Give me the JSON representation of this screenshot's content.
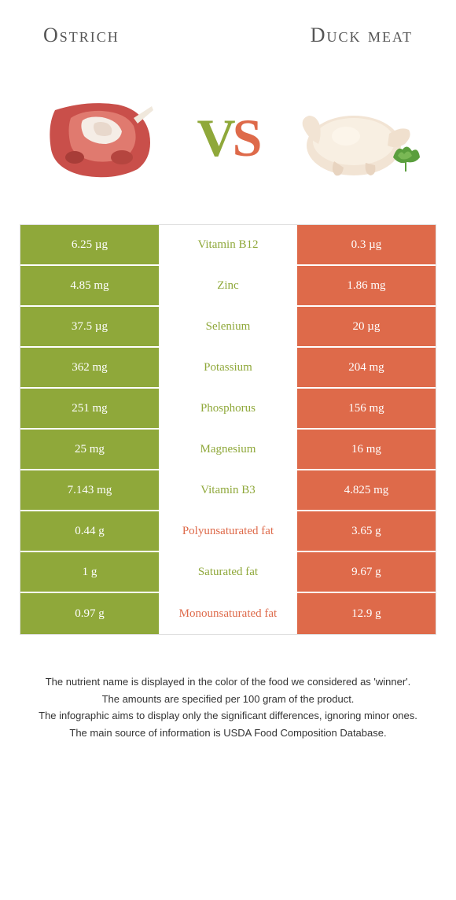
{
  "food1": {
    "name": "Ostrich"
  },
  "food2": {
    "name": "Duck meat"
  },
  "vs": {
    "v": "V",
    "s": "S"
  },
  "colors": {
    "green": "#8fa83a",
    "orange": "#de6a4a"
  },
  "rows": [
    {
      "left": "6.25 µg",
      "label": "Vitamin B12",
      "right": "0.3 µg",
      "winner": "green"
    },
    {
      "left": "4.85 mg",
      "label": "Zinc",
      "right": "1.86 mg",
      "winner": "green"
    },
    {
      "left": "37.5 µg",
      "label": "Selenium",
      "right": "20 µg",
      "winner": "green"
    },
    {
      "left": "362 mg",
      "label": "Potassium",
      "right": "204 mg",
      "winner": "green"
    },
    {
      "left": "251 mg",
      "label": "Phosphorus",
      "right": "156 mg",
      "winner": "green"
    },
    {
      "left": "25 mg",
      "label": "Magnesium",
      "right": "16 mg",
      "winner": "green"
    },
    {
      "left": "7.143 mg",
      "label": "Vitamin B3",
      "right": "4.825 mg",
      "winner": "green"
    },
    {
      "left": "0.44 g",
      "label": "Polyunsaturated fat",
      "right": "3.65 g",
      "winner": "orange"
    },
    {
      "left": "1 g",
      "label": "Saturated fat",
      "right": "9.67 g",
      "winner": "green"
    },
    {
      "left": "0.97 g",
      "label": "Monounsaturated fat",
      "right": "12.9 g",
      "winner": "orange"
    }
  ],
  "footer": {
    "line1": "The nutrient name is displayed in the color of the food we considered as 'winner'.",
    "line2": "The amounts are specified per 100 gram of the product.",
    "line3": "The infographic aims to display only the significant differences, ignoring minor ones.",
    "line4": "The main source of information is USDA Food Composition Database."
  }
}
